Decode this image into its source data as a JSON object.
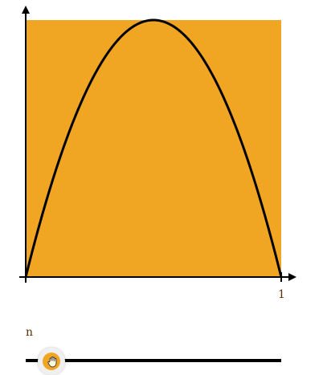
{
  "plot": {
    "x_range": [
      0,
      1
    ],
    "y_range": [
      0,
      1
    ],
    "curve": {
      "function": "4x(1-x)",
      "color": "#000000"
    },
    "fill_color": "#f0a623",
    "x_tick_label": "1"
  },
  "slider": {
    "label": "n",
    "value": 0.1,
    "knob_color": "#f0a623"
  },
  "icons": {
    "slider_cursor": "hand-grab-icon"
  }
}
